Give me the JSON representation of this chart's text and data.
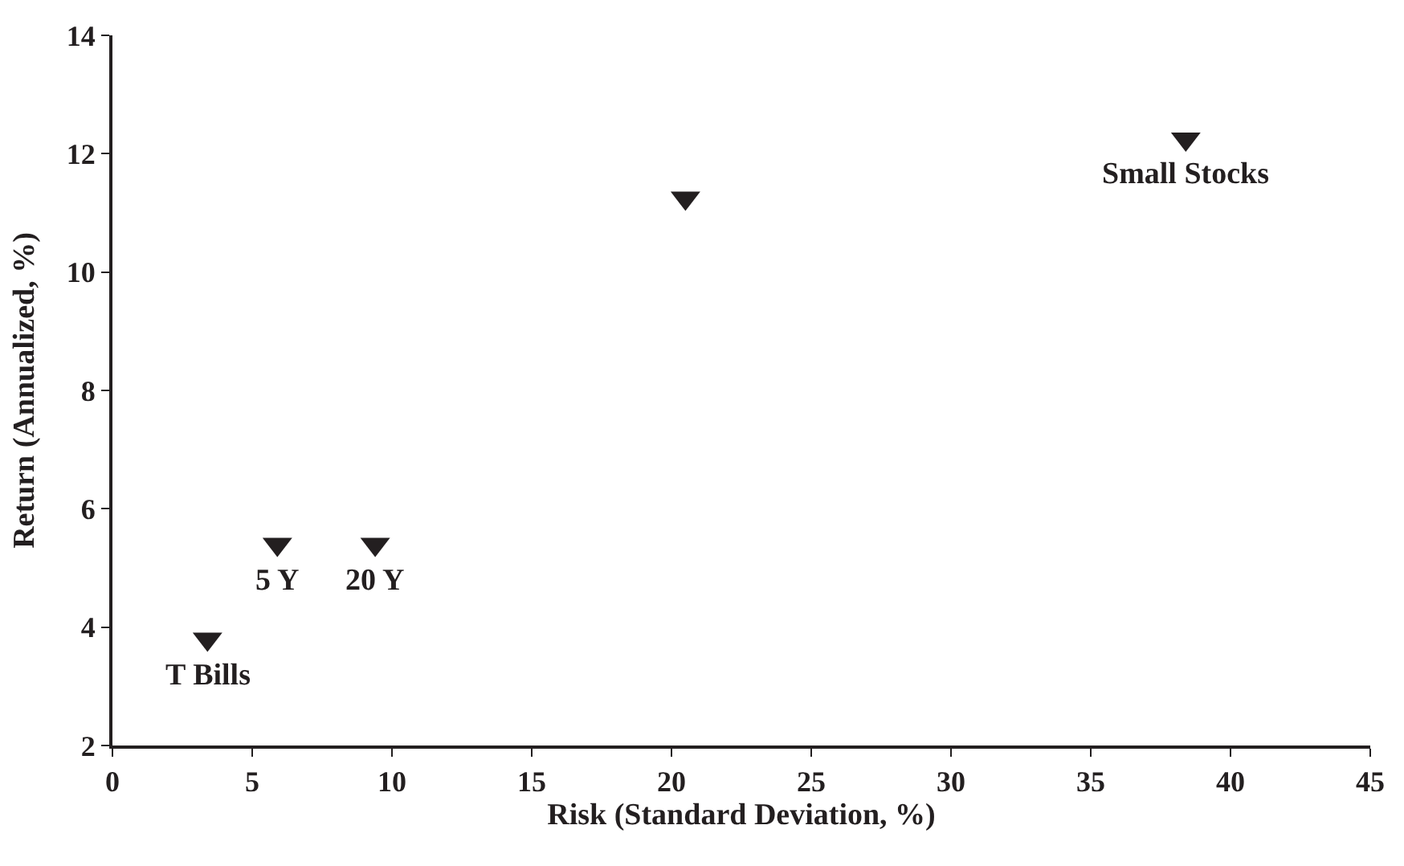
{
  "chart_data": {
    "type": "scatter",
    "xlabel": "Risk (Standard Deviation, %)",
    "ylabel": "Return (Annualized, %)",
    "x": [
      3.4,
      5.9,
      9.4,
      20.5,
      38.4
    ],
    "series": [
      {
        "color": "#231f20",
        "values": [
          3.8,
          5.4,
          5.4,
          11.25,
          12.25
        ]
      }
    ],
    "xlim": [
      0,
      45
    ],
    "xticks": [
      0,
      5,
      10,
      15,
      20,
      25,
      30,
      35,
      40,
      45
    ],
    "ylim": [
      2,
      14
    ],
    "yticks": [
      2,
      4,
      6,
      8,
      10,
      12,
      14
    ],
    "marker": "triangle",
    "annotations": [
      {
        "text": "T Bills",
        "x": 3.4,
        "y": 3.8
      },
      {
        "text": "5 Y",
        "x": 5.9,
        "y": 5.4
      },
      {
        "text": "20 Y",
        "x": 9.4,
        "y": 5.4
      },
      {
        "text": "Small Stocks",
        "x": 38.4,
        "y": 12.25
      }
    ]
  }
}
